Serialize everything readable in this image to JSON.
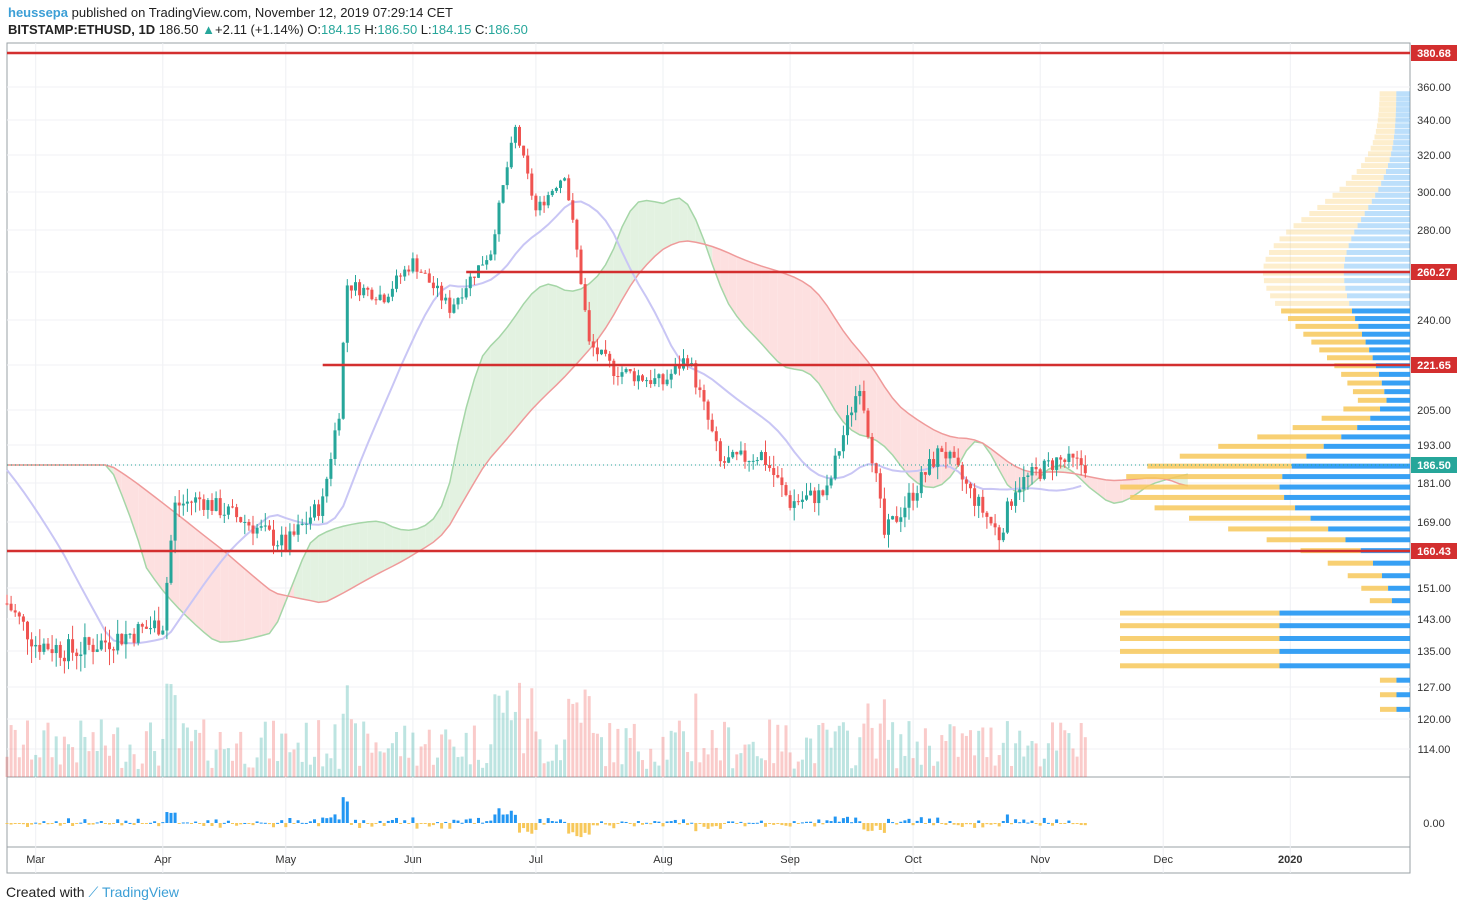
{
  "header": {
    "user": "heussepa",
    "published": "published on TradingView.com, November 12, 2019 07:29:14 CET",
    "symbol": "BITSTAMP:ETHUSD, 1D",
    "last": "186.50",
    "change": "+2.11 (+1.14%)",
    "o_label": "O:",
    "o": "184.15",
    "h_label": "H:",
    "h": "186.50",
    "l_label": "L:",
    "l": "184.15",
    "c_label": "C:",
    "c": "186.50"
  },
  "footer": {
    "created": "Created with",
    "brand": "TradingView"
  },
  "colors": {
    "up": "#26a69a",
    "down": "#ef5350",
    "level": "#d32f2f",
    "cloud_bull": "#e3f2e1",
    "cloud_bear": "#fde0e0",
    "kijun": "#c9c6f5",
    "volume_profile_up": "#2196f3",
    "volume_profile_down": "#f7c85a"
  },
  "chart_data": {
    "type": "candlestick",
    "title": "",
    "ylim": [
      112,
      385
    ],
    "x_tick_labels": [
      "Mar",
      "Apr",
      "May",
      "Jun",
      "Jul",
      "Aug",
      "Sep",
      "Oct",
      "Nov",
      "Dec",
      "2020"
    ],
    "y_tick_labels": [
      "360.00",
      "340.00",
      "320.00",
      "300.00",
      "280.00",
      "240.00",
      "205.00",
      "193.00",
      "181.00",
      "169.00",
      "151.00",
      "143.00",
      "135.00",
      "127.00",
      "120.00",
      "114.00"
    ],
    "levels": [
      380.68,
      260.27,
      221.65,
      160.43
    ],
    "level_labels": [
      "380.68",
      "260.27",
      "221.65",
      "160.43"
    ],
    "last_price": 186.5,
    "last_price_label": "186.50",
    "indicators": [
      "Ichimoku Cloud",
      "Volume",
      "Volume Profile",
      "Oscillator"
    ],
    "oscillator_tick_label": "0.00",
    "close_path": [
      {
        "date": "2019-02-22",
        "close": 147
      },
      {
        "date": "2019-03-01",
        "close": 137
      },
      {
        "date": "2019-03-10",
        "close": 135
      },
      {
        "date": "2019-03-20",
        "close": 138
      },
      {
        "date": "2019-04-01",
        "close": 142
      },
      {
        "date": "2019-04-04",
        "close": 174
      },
      {
        "date": "2019-04-10",
        "close": 176
      },
      {
        "date": "2019-04-20",
        "close": 170
      },
      {
        "date": "2019-05-01",
        "close": 162
      },
      {
        "date": "2019-05-10",
        "close": 175
      },
      {
        "date": "2019-05-14",
        "close": 205
      },
      {
        "date": "2019-05-16",
        "close": 255
      },
      {
        "date": "2019-05-25",
        "close": 250
      },
      {
        "date": "2019-06-01",
        "close": 265
      },
      {
        "date": "2019-06-10",
        "close": 245
      },
      {
        "date": "2019-06-20",
        "close": 270
      },
      {
        "date": "2019-06-26",
        "close": 335
      },
      {
        "date": "2019-07-01",
        "close": 290
      },
      {
        "date": "2019-07-08",
        "close": 310
      },
      {
        "date": "2019-07-14",
        "close": 230
      },
      {
        "date": "2019-07-20",
        "close": 220
      },
      {
        "date": "2019-08-01",
        "close": 215
      },
      {
        "date": "2019-08-07",
        "close": 225
      },
      {
        "date": "2019-08-15",
        "close": 187
      },
      {
        "date": "2019-08-25",
        "close": 190
      },
      {
        "date": "2019-09-01",
        "close": 175
      },
      {
        "date": "2019-09-10",
        "close": 178
      },
      {
        "date": "2019-09-18",
        "close": 215
      },
      {
        "date": "2019-09-24",
        "close": 165
      },
      {
        "date": "2019-10-01",
        "close": 178
      },
      {
        "date": "2019-10-08",
        "close": 192
      },
      {
        "date": "2019-10-15",
        "close": 178
      },
      {
        "date": "2019-10-22",
        "close": 165
      },
      {
        "date": "2019-10-26",
        "close": 180
      },
      {
        "date": "2019-11-05",
        "close": 188
      },
      {
        "date": "2019-11-12",
        "close": 186.5
      }
    ]
  }
}
